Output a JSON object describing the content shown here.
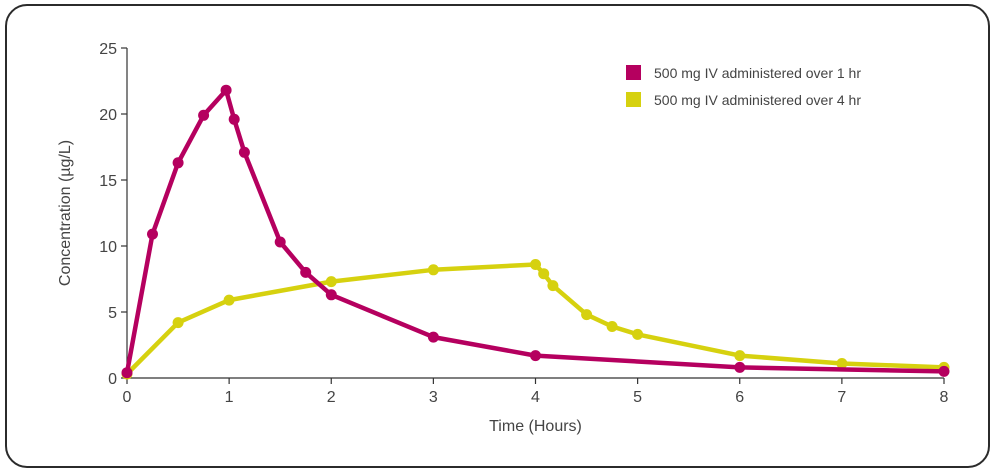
{
  "chart_data": {
    "type": "line",
    "xlabel": "Time (Hours)",
    "ylabel": "Concentration (µg/L)",
    "xlim": [
      0,
      8
    ],
    "ylim": [
      0,
      25
    ],
    "x_ticks": [
      "0",
      "1",
      "2",
      "3",
      "4",
      "5",
      "6",
      "7",
      "8"
    ],
    "y_ticks": [
      "0",
      "5",
      "10",
      "15",
      "20",
      "25"
    ],
    "grid": false,
    "legend_position": "top-right",
    "series": [
      {
        "name": "500 mg IV administered over 1 hr",
        "color": "#b5005f",
        "points": [
          [
            0,
            0.4
          ],
          [
            0.25,
            10.9
          ],
          [
            0.5,
            16.3
          ],
          [
            0.75,
            19.9
          ],
          [
            0.97,
            21.8
          ],
          [
            1.05,
            19.6
          ],
          [
            1.15,
            17.1
          ],
          [
            1.5,
            10.3
          ],
          [
            1.75,
            8.0
          ],
          [
            2.0,
            6.3
          ],
          [
            3.0,
            3.1
          ],
          [
            4.0,
            1.7
          ],
          [
            6.0,
            0.8
          ],
          [
            8.0,
            0.5
          ]
        ]
      },
      {
        "name": "500 mg IV administered over 4 hr",
        "color": "#d6d10f",
        "points": [
          [
            0,
            0.3
          ],
          [
            0.5,
            4.2
          ],
          [
            1.0,
            5.9
          ],
          [
            2.0,
            7.3
          ],
          [
            3.0,
            8.2
          ],
          [
            4.0,
            8.6
          ],
          [
            4.08,
            7.9
          ],
          [
            4.17,
            7.0
          ],
          [
            4.5,
            4.8
          ],
          [
            4.75,
            3.9
          ],
          [
            5.0,
            3.3
          ],
          [
            6.0,
            1.7
          ],
          [
            7.0,
            1.1
          ],
          [
            8.0,
            0.8
          ]
        ]
      }
    ]
  }
}
